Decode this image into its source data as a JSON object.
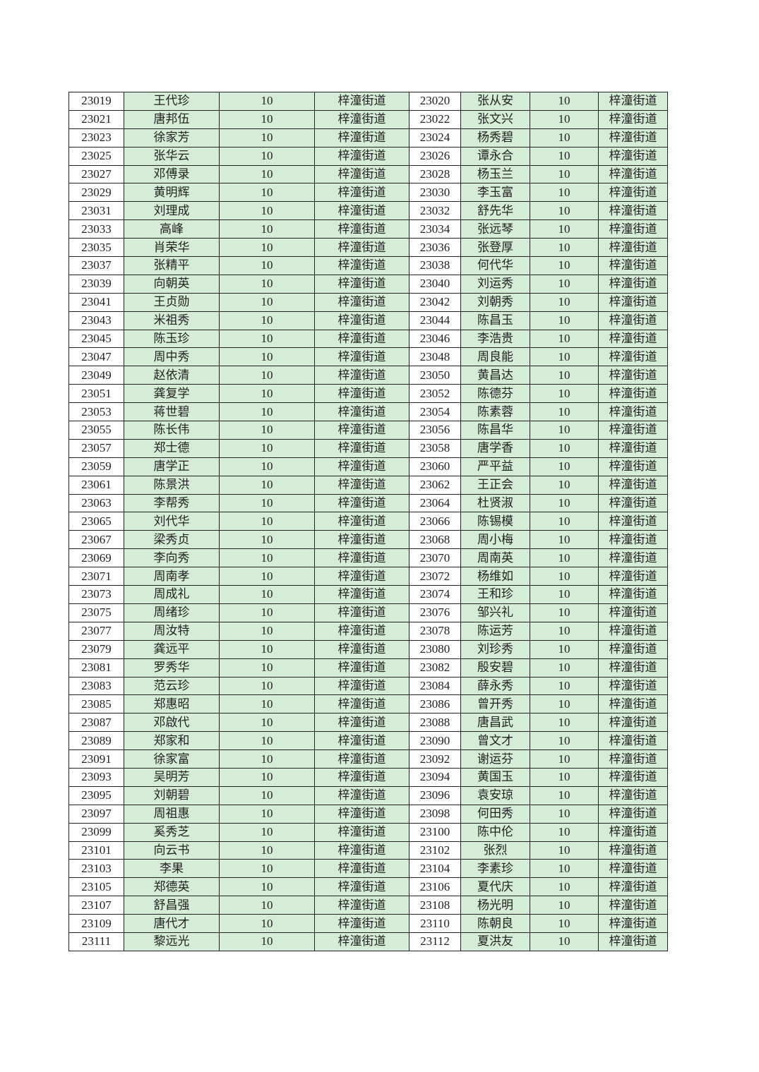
{
  "colors": {
    "cell_fill": "#d5ecd6",
    "id_fill": "#ffffff",
    "border": "#222222"
  },
  "rows": [
    [
      "23019",
      "王代珍",
      "10",
      "梓潼街道",
      "23020",
      "张从安",
      "10",
      "梓潼街道"
    ],
    [
      "23021",
      "唐邦伍",
      "10",
      "梓潼街道",
      "23022",
      "张文兴",
      "10",
      "梓潼街道"
    ],
    [
      "23023",
      "徐家芳",
      "10",
      "梓潼街道",
      "23024",
      "杨秀碧",
      "10",
      "梓潼街道"
    ],
    [
      "23025",
      "张华云",
      "10",
      "梓潼街道",
      "23026",
      "谭永合",
      "10",
      "梓潼街道"
    ],
    [
      "23027",
      "邓傅录",
      "10",
      "梓潼街道",
      "23028",
      "杨玉兰",
      "10",
      "梓潼街道"
    ],
    [
      "23029",
      "黄明辉",
      "10",
      "梓潼街道",
      "23030",
      "李玉富",
      "10",
      "梓潼街道"
    ],
    [
      "23031",
      "刘理成",
      "10",
      "梓潼街道",
      "23032",
      "舒先华",
      "10",
      "梓潼街道"
    ],
    [
      "23033",
      "高峰",
      "10",
      "梓潼街道",
      "23034",
      "张远琴",
      "10",
      "梓潼街道"
    ],
    [
      "23035",
      "肖荣华",
      "10",
      "梓潼街道",
      "23036",
      "张登厚",
      "10",
      "梓潼街道"
    ],
    [
      "23037",
      "张精平",
      "10",
      "梓潼街道",
      "23038",
      "何代华",
      "10",
      "梓潼街道"
    ],
    [
      "23039",
      "向朝英",
      "10",
      "梓潼街道",
      "23040",
      "刘运秀",
      "10",
      "梓潼街道"
    ],
    [
      "23041",
      "王贞勋",
      "10",
      "梓潼街道",
      "23042",
      "刘朝秀",
      "10",
      "梓潼街道"
    ],
    [
      "23043",
      "米祖秀",
      "10",
      "梓潼街道",
      "23044",
      "陈昌玉",
      "10",
      "梓潼街道"
    ],
    [
      "23045",
      "陈玉珍",
      "10",
      "梓潼街道",
      "23046",
      "李浩贵",
      "10",
      "梓潼街道"
    ],
    [
      "23047",
      "周中秀",
      "10",
      "梓潼街道",
      "23048",
      "周良能",
      "10",
      "梓潼街道"
    ],
    [
      "23049",
      "赵依清",
      "10",
      "梓潼街道",
      "23050",
      "黄昌达",
      "10",
      "梓潼街道"
    ],
    [
      "23051",
      "龚复学",
      "10",
      "梓潼街道",
      "23052",
      "陈德芬",
      "10",
      "梓潼街道"
    ],
    [
      "23053",
      "蒋世碧",
      "10",
      "梓潼街道",
      "23054",
      "陈素蓉",
      "10",
      "梓潼街道"
    ],
    [
      "23055",
      "陈长伟",
      "10",
      "梓潼街道",
      "23056",
      "陈昌华",
      "10",
      "梓潼街道"
    ],
    [
      "23057",
      "郑士德",
      "10",
      "梓潼街道",
      "23058",
      "唐学香",
      "10",
      "梓潼街道"
    ],
    [
      "23059",
      "唐学正",
      "10",
      "梓潼街道",
      "23060",
      "严平益",
      "10",
      "梓潼街道"
    ],
    [
      "23061",
      "陈景洪",
      "10",
      "梓潼街道",
      "23062",
      "王正会",
      "10",
      "梓潼街道"
    ],
    [
      "23063",
      "李帮秀",
      "10",
      "梓潼街道",
      "23064",
      "杜贤淑",
      "10",
      "梓潼街道"
    ],
    [
      "23065",
      "刘代华",
      "10",
      "梓潼街道",
      "23066",
      "陈锡模",
      "10",
      "梓潼街道"
    ],
    [
      "23067",
      "梁秀贞",
      "10",
      "梓潼街道",
      "23068",
      "周小梅",
      "10",
      "梓潼街道"
    ],
    [
      "23069",
      "李向秀",
      "10",
      "梓潼街道",
      "23070",
      "周南英",
      "10",
      "梓潼街道"
    ],
    [
      "23071",
      "周南孝",
      "10",
      "梓潼街道",
      "23072",
      "杨维如",
      "10",
      "梓潼街道"
    ],
    [
      "23073",
      "周成礼",
      "10",
      "梓潼街道",
      "23074",
      "王和珍",
      "10",
      "梓潼街道"
    ],
    [
      "23075",
      "周绪珍",
      "10",
      "梓潼街道",
      "23076",
      "邹兴礼",
      "10",
      "梓潼街道"
    ],
    [
      "23077",
      "周汝特",
      "10",
      "梓潼街道",
      "23078",
      "陈运芳",
      "10",
      "梓潼街道"
    ],
    [
      "23079",
      "龚远平",
      "10",
      "梓潼街道",
      "23080",
      "刘珍秀",
      "10",
      "梓潼街道"
    ],
    [
      "23081",
      "罗秀华",
      "10",
      "梓潼街道",
      "23082",
      "殷安碧",
      "10",
      "梓潼街道"
    ],
    [
      "23083",
      "范云珍",
      "10",
      "梓潼街道",
      "23084",
      "薛永秀",
      "10",
      "梓潼街道"
    ],
    [
      "23085",
      "郑惠昭",
      "10",
      "梓潼街道",
      "23086",
      "曾开秀",
      "10",
      "梓潼街道"
    ],
    [
      "23087",
      "邓啟代",
      "10",
      "梓潼街道",
      "23088",
      "唐昌武",
      "10",
      "梓潼街道"
    ],
    [
      "23089",
      "郑家和",
      "10",
      "梓潼街道",
      "23090",
      "曾文才",
      "10",
      "梓潼街道"
    ],
    [
      "23091",
      "徐家富",
      "10",
      "梓潼街道",
      "23092",
      "谢运芬",
      "10",
      "梓潼街道"
    ],
    [
      "23093",
      "吴明芳",
      "10",
      "梓潼街道",
      "23094",
      "黄国玉",
      "10",
      "梓潼街道"
    ],
    [
      "23095",
      "刘朝碧",
      "10",
      "梓潼街道",
      "23096",
      "袁安琼",
      "10",
      "梓潼街道"
    ],
    [
      "23097",
      "周祖惠",
      "10",
      "梓潼街道",
      "23098",
      "何田秀",
      "10",
      "梓潼街道"
    ],
    [
      "23099",
      "奚秀芝",
      "10",
      "梓潼街道",
      "23100",
      "陈中伦",
      "10",
      "梓潼街道"
    ],
    [
      "23101",
      "向云书",
      "10",
      "梓潼街道",
      "23102",
      "张烈",
      "10",
      "梓潼街道"
    ],
    [
      "23103",
      "李果",
      "10",
      "梓潼街道",
      "23104",
      "李素珍",
      "10",
      "梓潼街道"
    ],
    [
      "23105",
      "郑德英",
      "10",
      "梓潼街道",
      "23106",
      "夏代庆",
      "10",
      "梓潼街道"
    ],
    [
      "23107",
      "舒昌强",
      "10",
      "梓潼街道",
      "23108",
      "杨光明",
      "10",
      "梓潼街道"
    ],
    [
      "23109",
      "唐代才",
      "10",
      "梓潼街道",
      "23110",
      "陈朝良",
      "10",
      "梓潼街道"
    ],
    [
      "23111",
      "黎远光",
      "10",
      "梓潼街道",
      "23112",
      "夏洪友",
      "10",
      "梓潼街道"
    ]
  ]
}
